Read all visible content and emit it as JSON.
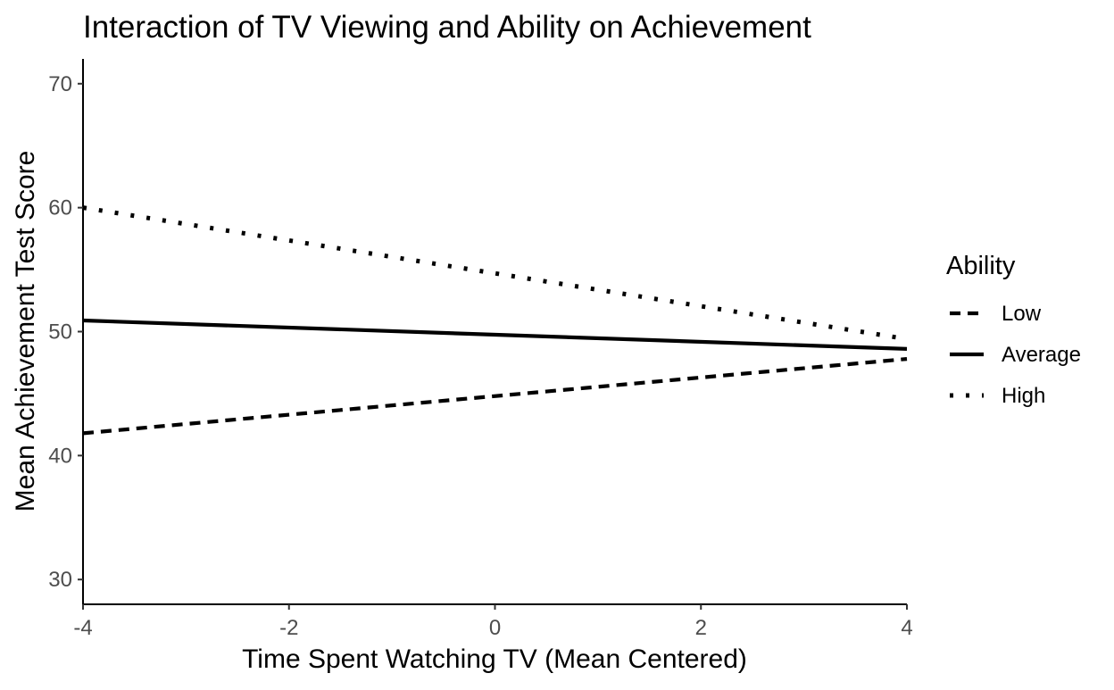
{
  "chart_data": {
    "type": "line",
    "title": "Interaction of TV Viewing and Ability on Achievement",
    "xlabel": "Time Spent Watching TV (Mean Centered)",
    "ylabel": "Mean Achievement Test Score",
    "xlim": [
      -4,
      4
    ],
    "ylim": [
      28,
      72
    ],
    "xticks": [
      -4,
      -2,
      0,
      2,
      4
    ],
    "xtick_labels": [
      "-4",
      "-2",
      "0",
      "2",
      "4"
    ],
    "yticks": [
      30,
      40,
      50,
      60,
      70
    ],
    "ytick_labels": [
      "30",
      "40",
      "50",
      "60",
      "70"
    ],
    "grid": false,
    "legend_title": "Ability",
    "legend_position": "right",
    "series": [
      {
        "name": "Low",
        "x": [
          -4,
          4
        ],
        "y": [
          41.8,
          47.8
        ],
        "color": "#000000",
        "linetype": "dashed"
      },
      {
        "name": "Average",
        "x": [
          -4,
          4
        ],
        "y": [
          50.9,
          48.6
        ],
        "color": "#000000",
        "linetype": "solid"
      },
      {
        "name": "High",
        "x": [
          -4,
          4
        ],
        "y": [
          60.0,
          49.4
        ],
        "color": "#000000",
        "linetype": "dotted"
      }
    ]
  }
}
